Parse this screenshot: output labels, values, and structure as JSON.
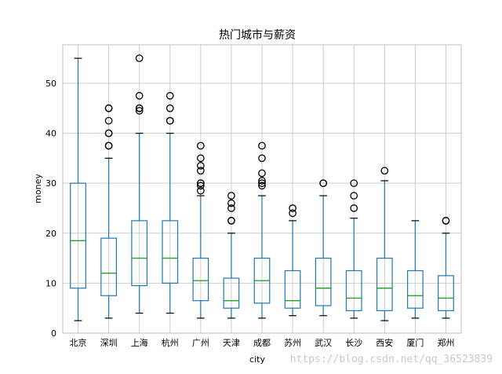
{
  "watermark": "https://blog.csdn.net/qq_36523839",
  "chart_data": {
    "type": "box",
    "title": "热门城市与薪资",
    "xlabel": "city",
    "ylabel": "money",
    "ylim": [
      0,
      57.7
    ],
    "yticks": [
      0,
      10,
      20,
      30,
      40,
      50
    ],
    "grid": true,
    "colors": {
      "box": "#1f77b4",
      "median": "#2ca02c",
      "outlier": "#000000",
      "grid": "#cccccc"
    },
    "categories": [
      "北京",
      "深圳",
      "上海",
      "杭州",
      "广州",
      "天津",
      "成都",
      "苏州",
      "武汉",
      "长沙",
      "西安",
      "厦门",
      "郑州"
    ],
    "boxes": [
      {
        "whislo": 2.5,
        "q1": 9.0,
        "med": 18.5,
        "q3": 30.0,
        "whishi": 55.0,
        "fliers": []
      },
      {
        "whislo": 3.0,
        "q1": 7.5,
        "med": 12.0,
        "q3": 19.0,
        "whishi": 35.0,
        "fliers": [
          37.5,
          37.5,
          40.0,
          40.0,
          42.5,
          45.0,
          45.0
        ]
      },
      {
        "whislo": 4.0,
        "q1": 9.5,
        "med": 15.0,
        "q3": 22.5,
        "whishi": 40.0,
        "fliers": [
          44.5,
          45.0,
          45.0,
          47.5,
          55.0
        ]
      },
      {
        "whislo": 4.0,
        "q1": 10.0,
        "med": 15.0,
        "q3": 22.5,
        "whishi": 40.0,
        "fliers": [
          42.5,
          42.5,
          45.0,
          47.5
        ]
      },
      {
        "whislo": 3.0,
        "q1": 6.5,
        "med": 10.5,
        "q3": 15.0,
        "whishi": 27.5,
        "fliers": [
          28.5,
          29.5,
          30.0,
          30.0,
          32.5,
          33.5,
          35.0,
          37.5
        ]
      },
      {
        "whislo": 3.0,
        "q1": 5.0,
        "med": 6.5,
        "q3": 11.0,
        "whishi": 20.0,
        "fliers": [
          22.5,
          22.5,
          25.0,
          26.0,
          27.5
        ]
      },
      {
        "whislo": 3.0,
        "q1": 6.0,
        "med": 10.5,
        "q3": 15.0,
        "whishi": 27.5,
        "fliers": [
          29.5,
          30.0,
          30.5,
          32.0,
          35.0,
          37.5
        ]
      },
      {
        "whislo": 3.5,
        "q1": 5.0,
        "med": 6.5,
        "q3": 12.5,
        "whishi": 22.5,
        "fliers": [
          24.0,
          25.0
        ]
      },
      {
        "whislo": 3.5,
        "q1": 5.5,
        "med": 9.0,
        "q3": 15.0,
        "whishi": 27.5,
        "fliers": [
          30.0,
          30.0
        ]
      },
      {
        "whislo": 3.0,
        "q1": 4.5,
        "med": 7.0,
        "q3": 12.5,
        "whishi": 23.0,
        "fliers": [
          25.0,
          27.5,
          30.0
        ]
      },
      {
        "whislo": 2.5,
        "q1": 4.5,
        "med": 9.0,
        "q3": 15.0,
        "whishi": 30.5,
        "fliers": [
          32.5
        ]
      },
      {
        "whislo": 3.0,
        "q1": 5.0,
        "med": 7.5,
        "q3": 12.5,
        "whishi": 22.5,
        "fliers": []
      },
      {
        "whislo": 3.0,
        "q1": 4.5,
        "med": 7.0,
        "q3": 11.5,
        "whishi": 20.0,
        "fliers": [
          22.5,
          22.5
        ]
      }
    ]
  }
}
